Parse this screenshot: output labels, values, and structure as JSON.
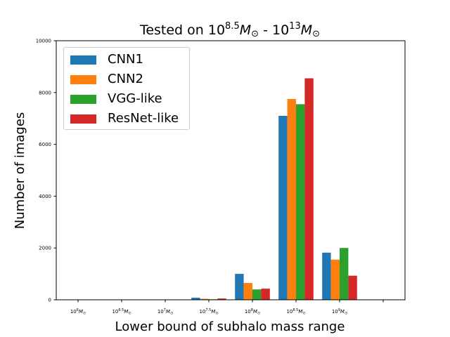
{
  "chart_data": {
    "type": "bar",
    "title": "Tested on 10^8.5 M_⊙ - 10^13 M_⊙",
    "title_parts": {
      "pre": "Tested on 10",
      "exp1": "8.5",
      "m1": "M",
      "sun": "⊙",
      "mid": " - 10",
      "exp2": "13"
    },
    "xlabel": "Lower bound of subhalo mass range",
    "ylabel": "Number of images",
    "categories": [
      "10^6 M_⊙",
      "10^6.5 M_⊙",
      "10^7 M_⊙",
      "10^7.5 M_⊙",
      "10^8 M_⊙",
      "10^8.5 M_⊙",
      "10^9 M_⊙"
    ],
    "category_exponents": [
      "6",
      "6.5",
      "7",
      "7.5",
      "8",
      "8.5",
      "9"
    ],
    "yticks": [
      0,
      2000,
      4000,
      6000,
      8000,
      10000
    ],
    "ylim": [
      0,
      10000
    ],
    "xlim": [
      -0.5,
      7.5
    ],
    "series": [
      {
        "name": "CNN1",
        "color": "#1f77b4",
        "values": [
          0,
          0,
          0,
          80,
          1000,
          7100,
          1820
        ]
      },
      {
        "name": "CNN2",
        "color": "#ff7f0e",
        "values": [
          0,
          0,
          0,
          40,
          650,
          7750,
          1550
        ]
      },
      {
        "name": "VGG-like",
        "color": "#2ca02c",
        "values": [
          0,
          0,
          0,
          20,
          400,
          7550,
          2000
        ]
      },
      {
        "name": "ResNet-like",
        "color": "#d62728",
        "values": [
          0,
          0,
          0,
          50,
          430,
          8550,
          930
        ]
      }
    ],
    "legend_position": "top-left",
    "grid": false
  }
}
